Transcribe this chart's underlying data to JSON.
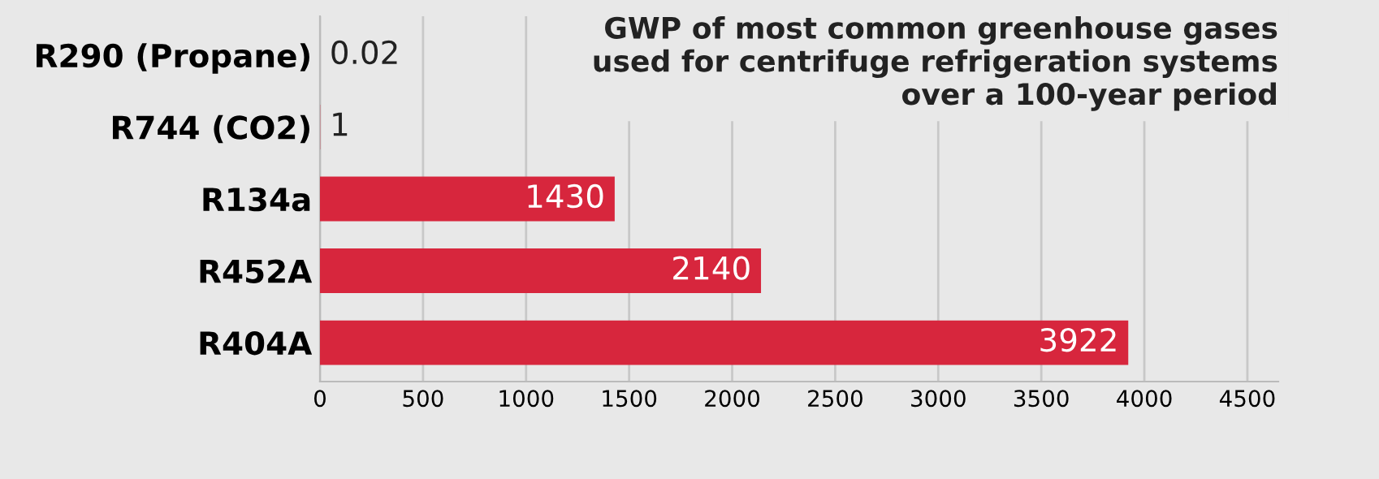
{
  "chart_data": {
    "type": "bar",
    "orientation": "horizontal",
    "title": "GWP of most common greenhouse gases\nused for centrifuge refrigeration systems\nover a 100-year period",
    "categories": [
      "R290 (Propane)",
      "R744 (CO2)",
      "R134a",
      "R452A",
      "R404A"
    ],
    "values": [
      0.02,
      1,
      1430,
      2140,
      3922
    ],
    "color": "#d7263d",
    "xlim": [
      0,
      4650
    ],
    "xticks": [
      0,
      500,
      1000,
      1500,
      2000,
      2500,
      3000,
      3500,
      4000,
      4500
    ],
    "grid": "x",
    "data_labels": true
  }
}
